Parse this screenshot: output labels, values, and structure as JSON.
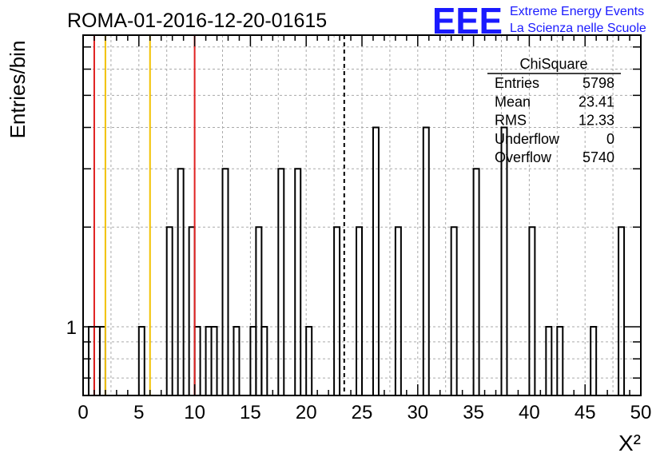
{
  "header": {
    "run_title": "ROMA-01-2016-12-20-01615",
    "logo_text": "EEE",
    "logo_line1": "Extreme Energy Events",
    "logo_line2": "La Scienza nelle Scuole",
    "brand_color": "#1a1aff"
  },
  "stats_box": {
    "title": "ChiSquare",
    "rows": [
      {
        "label": "Entries",
        "value": "5798"
      },
      {
        "label": "Mean",
        "value": "23.41"
      },
      {
        "label": "RMS",
        "value": "12.33"
      },
      {
        "label": "Underflow",
        "value": "0"
      },
      {
        "label": "Overflow",
        "value": "5740"
      }
    ]
  },
  "chart_data": {
    "type": "bar",
    "title": "ROMA-01-2016-12-20-01615",
    "xlabel": "X²",
    "ylabel": "Entries/bin",
    "xlim": [
      0,
      50
    ],
    "ylog": true,
    "grid": true,
    "bin_width": 0.5,
    "x_ticks": [
      "0",
      "5",
      "10",
      "15",
      "20",
      "25",
      "30",
      "35",
      "40",
      "45",
      "50"
    ],
    "y_tick_labels": [
      {
        "value": 1,
        "label": "1"
      }
    ],
    "bins": [
      {
        "x": 0.5,
        "count": 1
      },
      {
        "x": 1.0,
        "count": 1
      },
      {
        "x": 1.5,
        "count": 1
      },
      {
        "x": 5.0,
        "count": 1
      },
      {
        "x": 7.5,
        "count": 2
      },
      {
        "x": 8.5,
        "count": 3
      },
      {
        "x": 9.5,
        "count": 2
      },
      {
        "x": 10.0,
        "count": 1
      },
      {
        "x": 11.0,
        "count": 1
      },
      {
        "x": 11.5,
        "count": 1
      },
      {
        "x": 12.5,
        "count": 3
      },
      {
        "x": 13.5,
        "count": 1
      },
      {
        "x": 15.0,
        "count": 1
      },
      {
        "x": 15.5,
        "count": 2
      },
      {
        "x": 16.0,
        "count": 1
      },
      {
        "x": 17.5,
        "count": 3
      },
      {
        "x": 19.0,
        "count": 3
      },
      {
        "x": 20.0,
        "count": 1
      },
      {
        "x": 22.5,
        "count": 2
      },
      {
        "x": 24.5,
        "count": 2
      },
      {
        "x": 26.0,
        "count": 4
      },
      {
        "x": 28.0,
        "count": 2
      },
      {
        "x": 30.5,
        "count": 4
      },
      {
        "x": 33.0,
        "count": 2
      },
      {
        "x": 35.0,
        "count": 3
      },
      {
        "x": 37.5,
        "count": 4
      },
      {
        "x": 40.0,
        "count": 2
      },
      {
        "x": 41.5,
        "count": 1
      },
      {
        "x": 42.5,
        "count": 1
      },
      {
        "x": 45.5,
        "count": 1
      },
      {
        "x": 48.0,
        "count": 2
      }
    ],
    "vertical_lines": [
      {
        "x": 1,
        "color": "#e02020",
        "style": "solid"
      },
      {
        "x": 2,
        "color": "#f2c200",
        "style": "solid"
      },
      {
        "x": 6,
        "color": "#f2c200",
        "style": "solid"
      },
      {
        "x": 10,
        "color": "#e02020",
        "style": "solid"
      },
      {
        "x": 23.41,
        "color": "#000000",
        "style": "dashed"
      }
    ]
  }
}
